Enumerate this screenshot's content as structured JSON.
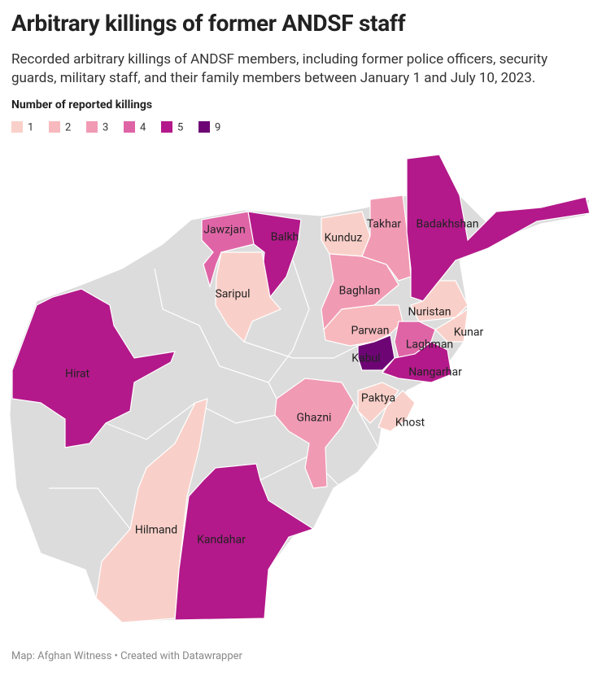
{
  "title": "Arbitrary killings of former ANDSF staff",
  "subtitle": "Recorded arbitrary killings of ANDSF members, including former police officers, security guards, military staff, and their family members between January 1 and July 10, 2023.",
  "legend": {
    "title": "Number of reported killings",
    "items": [
      {
        "value": 1,
        "color": "#f9d0c9"
      },
      {
        "value": 2,
        "color": "#f7b9bd"
      },
      {
        "value": 3,
        "color": "#f19ab4"
      },
      {
        "value": 4,
        "color": "#df64a6"
      },
      {
        "value": 5,
        "color": "#b3198a"
      },
      {
        "value": 9,
        "color": "#6d0674"
      }
    ]
  },
  "regions": [
    {
      "name": "Jawzjan",
      "value": 4
    },
    {
      "name": "Balkh",
      "value": 5
    },
    {
      "name": "Kunduz",
      "value": 1
    },
    {
      "name": "Takhar",
      "value": 3
    },
    {
      "name": "Badakhshan",
      "value": 5
    },
    {
      "name": "Saripul",
      "value": 1
    },
    {
      "name": "Baghlan",
      "value": 3
    },
    {
      "name": "Nuristan",
      "value": 1
    },
    {
      "name": "Kunar",
      "value": 1
    },
    {
      "name": "Parwan",
      "value": 2
    },
    {
      "name": "Laghman",
      "value": 4
    },
    {
      "name": "Kabul",
      "value": 9
    },
    {
      "name": "Nangarhar",
      "value": 5
    },
    {
      "name": "Paktya",
      "value": 1
    },
    {
      "name": "Khost",
      "value": 1
    },
    {
      "name": "Ghazni",
      "value": 3
    },
    {
      "name": "Hirat",
      "value": 5
    },
    {
      "name": "Hilmand",
      "value": 1
    },
    {
      "name": "Kandahar",
      "value": 5
    }
  ],
  "footer": "Map: Afghan Witness • Created with Datawrapper"
}
